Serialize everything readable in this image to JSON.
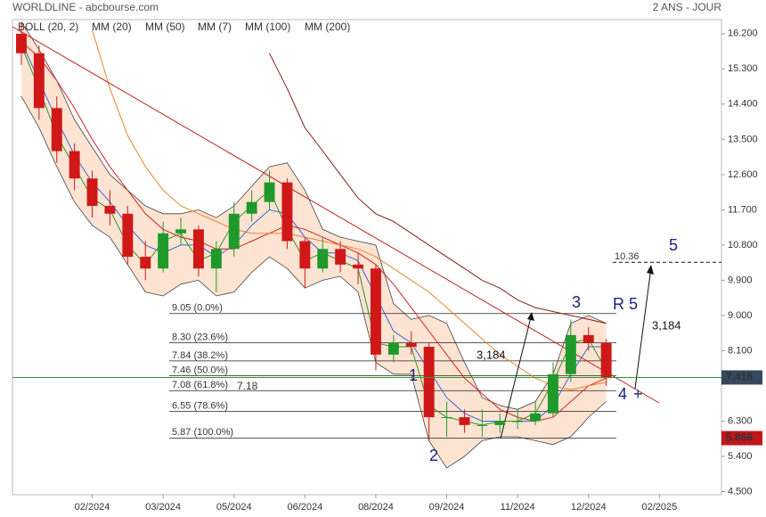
{
  "chart_data": {
    "type": "candlestick",
    "title": "WORLDLINE - abcbourse.com",
    "period": "2 ANS - JOUR",
    "categories": [
      null,
      null,
      null,
      null,
      "02/2024",
      null,
      null,
      null,
      "03/2024",
      null,
      null,
      null,
      "05/2024",
      null,
      null,
      null,
      "06/2024",
      null,
      null,
      null,
      "08/2024",
      null,
      null,
      null,
      "09/2024",
      null,
      null,
      null,
      "11/2024",
      null,
      null,
      null,
      "12/2024",
      null,
      null,
      null,
      "02/2025",
      null,
      null,
      null
    ],
    "open": [
      16.2,
      15.7,
      14.3,
      13.2,
      12.5,
      11.8,
      11.6,
      10.5,
      10.2,
      11.1,
      11.2,
      10.2,
      10.7,
      11.6,
      11.9,
      12.4,
      10.9,
      10.2,
      10.7,
      10.3,
      10.2,
      8.0,
      8.3,
      8.2,
      6.4,
      6.4,
      6.2,
      6.2,
      6.3,
      6.3,
      6.5,
      7.5,
      8.5,
      8.3,
      null,
      null,
      null,
      null,
      null,
      null
    ],
    "high": [
      16.5,
      15.9,
      14.6,
      13.4,
      12.7,
      12.2,
      11.8,
      10.9,
      11.4,
      11.5,
      11.3,
      10.9,
      11.9,
      12.2,
      12.7,
      12.5,
      11.0,
      11.0,
      10.9,
      10.6,
      10.3,
      8.5,
      8.6,
      8.3,
      6.8,
      6.6,
      6.6,
      6.5,
      6.6,
      6.8,
      7.8,
      8.9,
      8.7,
      8.4,
      null,
      null,
      null,
      null,
      null,
      null
    ],
    "low": [
      15.4,
      14.0,
      12.9,
      12.2,
      11.5,
      11.3,
      10.3,
      9.9,
      10.1,
      10.8,
      10.0,
      9.6,
      10.5,
      11.4,
      11.7,
      10.7,
      9.7,
      10.1,
      10.1,
      9.8,
      7.6,
      7.8,
      8.0,
      5.8,
      5.9,
      6.0,
      5.9,
      6.0,
      6.1,
      6.2,
      6.4,
      7.3,
      8.1,
      7.2,
      null,
      null,
      null,
      null,
      null,
      null
    ],
    "close": [
      15.7,
      14.3,
      13.2,
      12.5,
      11.8,
      11.6,
      10.5,
      10.2,
      11.1,
      11.2,
      10.2,
      10.7,
      11.6,
      11.9,
      12.4,
      10.9,
      10.2,
      10.7,
      10.3,
      10.2,
      8.0,
      8.3,
      8.2,
      6.4,
      6.4,
      6.2,
      6.2,
      6.3,
      6.3,
      6.5,
      7.5,
      8.5,
      8.3,
      7.4,
      null,
      null,
      null,
      null,
      null,
      null
    ],
    "up_color": "#1f9a2a",
    "down_color": "#d01818",
    "bands": {
      "name": "BOLL (20, 2)",
      "color": "#444444",
      "fill": "#fde3d2",
      "upper": [
        16.5,
        15.8,
        15.0,
        14.0,
        13.3,
        12.6,
        12.2,
        11.8,
        11.6,
        11.6,
        11.7,
        11.5,
        11.8,
        12.3,
        12.8,
        12.9,
        12.2,
        11.2,
        11.0,
        10.9,
        10.8,
        9.3,
        8.9,
        9.0,
        8.8,
        7.8,
        6.9,
        6.7,
        6.6,
        6.8,
        7.5,
        8.8,
        9.0,
        8.8,
        null,
        null,
        null,
        null,
        null,
        null
      ],
      "lower": [
        14.6,
        13.8,
        12.8,
        11.9,
        11.3,
        11.0,
        10.3,
        9.6,
        9.5,
        9.8,
        9.9,
        9.5,
        9.6,
        10.1,
        10.5,
        10.2,
        9.7,
        9.9,
        10.0,
        9.6,
        7.8,
        7.5,
        7.5,
        5.8,
        5.1,
        5.4,
        5.8,
        5.9,
        5.9,
        5.8,
        5.7,
        5.9,
        6.4,
        6.8,
        null,
        null,
        null,
        null,
        null,
        null
      ]
    },
    "series": [
      {
        "name": "MM (20)",
        "color": "#3a66d8",
        "values": [
          16.0,
          15.0,
          14.0,
          13.1,
          12.4,
          11.9,
          11.3,
          10.8,
          10.6,
          10.8,
          10.8,
          10.5,
          10.8,
          11.3,
          11.7,
          11.6,
          11.0,
          10.6,
          10.6,
          10.4,
          9.5,
          8.6,
          8.3,
          7.6,
          6.9,
          6.5,
          6.3,
          6.3,
          6.3,
          6.3,
          6.7,
          7.5,
          8.2,
          8.2,
          null,
          null,
          null,
          null,
          null,
          null
        ]
      },
      {
        "name": "MM (50)",
        "color": "#d42020",
        "values": [
          16.0,
          15.6,
          15.0,
          14.3,
          13.5,
          12.8,
          12.2,
          11.6,
          11.2,
          11.0,
          10.9,
          10.7,
          10.7,
          10.9,
          11.1,
          11.3,
          11.2,
          11.0,
          10.8,
          10.6,
          10.3,
          9.8,
          9.2,
          8.6,
          8.0,
          7.4,
          7.0,
          6.6,
          6.4,
          6.3,
          6.4,
          6.8,
          7.2,
          7.4,
          null,
          null,
          null,
          null,
          null,
          null
        ]
      },
      {
        "name": "MM (7)",
        "color": "#2a9a2a",
        "values": [
          15.9,
          14.8,
          13.6,
          12.8,
          12.0,
          11.7,
          10.8,
          10.3,
          10.9,
          11.1,
          10.4,
          10.6,
          11.4,
          11.8,
          12.2,
          11.2,
          10.4,
          10.6,
          10.4,
          10.2,
          8.3,
          8.2,
          8.2,
          6.7,
          6.4,
          6.3,
          6.2,
          6.3,
          6.3,
          6.5,
          7.3,
          8.3,
          8.4,
          7.6,
          null,
          null,
          null,
          null,
          null,
          null
        ]
      },
      {
        "name": "MM (100)",
        "color": "#f0822a",
        "values": [
          null,
          null,
          null,
          null,
          16.3,
          14.8,
          13.6,
          12.8,
          12.2,
          11.8,
          11.6,
          11.4,
          11.2,
          11.1,
          11.1,
          11.1,
          11.0,
          10.9,
          10.8,
          10.7,
          10.5,
          10.2,
          9.9,
          9.6,
          9.2,
          8.8,
          8.4,
          8.0,
          7.7,
          7.4,
          7.2,
          7.1,
          7.2,
          7.3,
          null,
          null,
          null,
          null,
          null,
          null
        ]
      },
      {
        "name": "MM (200)",
        "color": "#8b1c1c",
        "values": [
          null,
          null,
          null,
          null,
          null,
          null,
          null,
          null,
          null,
          null,
          null,
          null,
          null,
          null,
          15.7,
          14.8,
          13.8,
          13.2,
          12.6,
          12.0,
          11.6,
          11.4,
          11.1,
          10.8,
          10.5,
          10.2,
          9.9,
          9.7,
          9.4,
          9.2,
          9.1,
          9.0,
          8.9,
          8.8,
          null,
          null,
          null,
          null,
          null,
          null
        ]
      }
    ],
    "ylim": [
      4.42,
      16.56
    ],
    "yticks": [
      {
        "value": 16.2,
        "label": "16.200"
      },
      {
        "value": 15.3,
        "label": "15.300"
      },
      {
        "value": 14.4,
        "label": "14.400"
      },
      {
        "value": 13.5,
        "label": "13.500"
      },
      {
        "value": 12.6,
        "label": "12.600"
      },
      {
        "value": 11.7,
        "label": "11.700"
      },
      {
        "value": 10.8,
        "label": "10.800"
      },
      {
        "value": 9.9,
        "label": "9.900"
      },
      {
        "value": 9.0,
        "label": "9.000"
      },
      {
        "value": 8.1,
        "label": "8.100"
      },
      {
        "value": 6.3,
        "label": "6.300"
      },
      {
        "value": 5.4,
        "label": "5.400"
      },
      {
        "value": 4.5,
        "label": "4.500"
      }
    ],
    "fib_levels": [
      {
        "value": 9.05,
        "label": "9.05  (0.0%)"
      },
      {
        "value": 8.3,
        "label": "8.30  (23.6%)"
      },
      {
        "value": 7.84,
        "label": "7.84  (38.2%)"
      },
      {
        "value": 7.46,
        "label": "7.46  (50.0%)"
      },
      {
        "value": 7.08,
        "label": "7.08  (61.8%)"
      },
      {
        "value": 6.55,
        "label": "6.55  (78.6%)"
      },
      {
        "value": 5.87,
        "label": "5.87  (100.0%)"
      }
    ],
    "last_price": 7.416,
    "low_price": 5.866,
    "marker_value": 7.18,
    "target": 10.36,
    "waves": [
      "1",
      "2",
      "3",
      "4",
      "5",
      "R 5",
      "+"
    ],
    "projection_labels": [
      "3,184",
      "3,184"
    ]
  }
}
